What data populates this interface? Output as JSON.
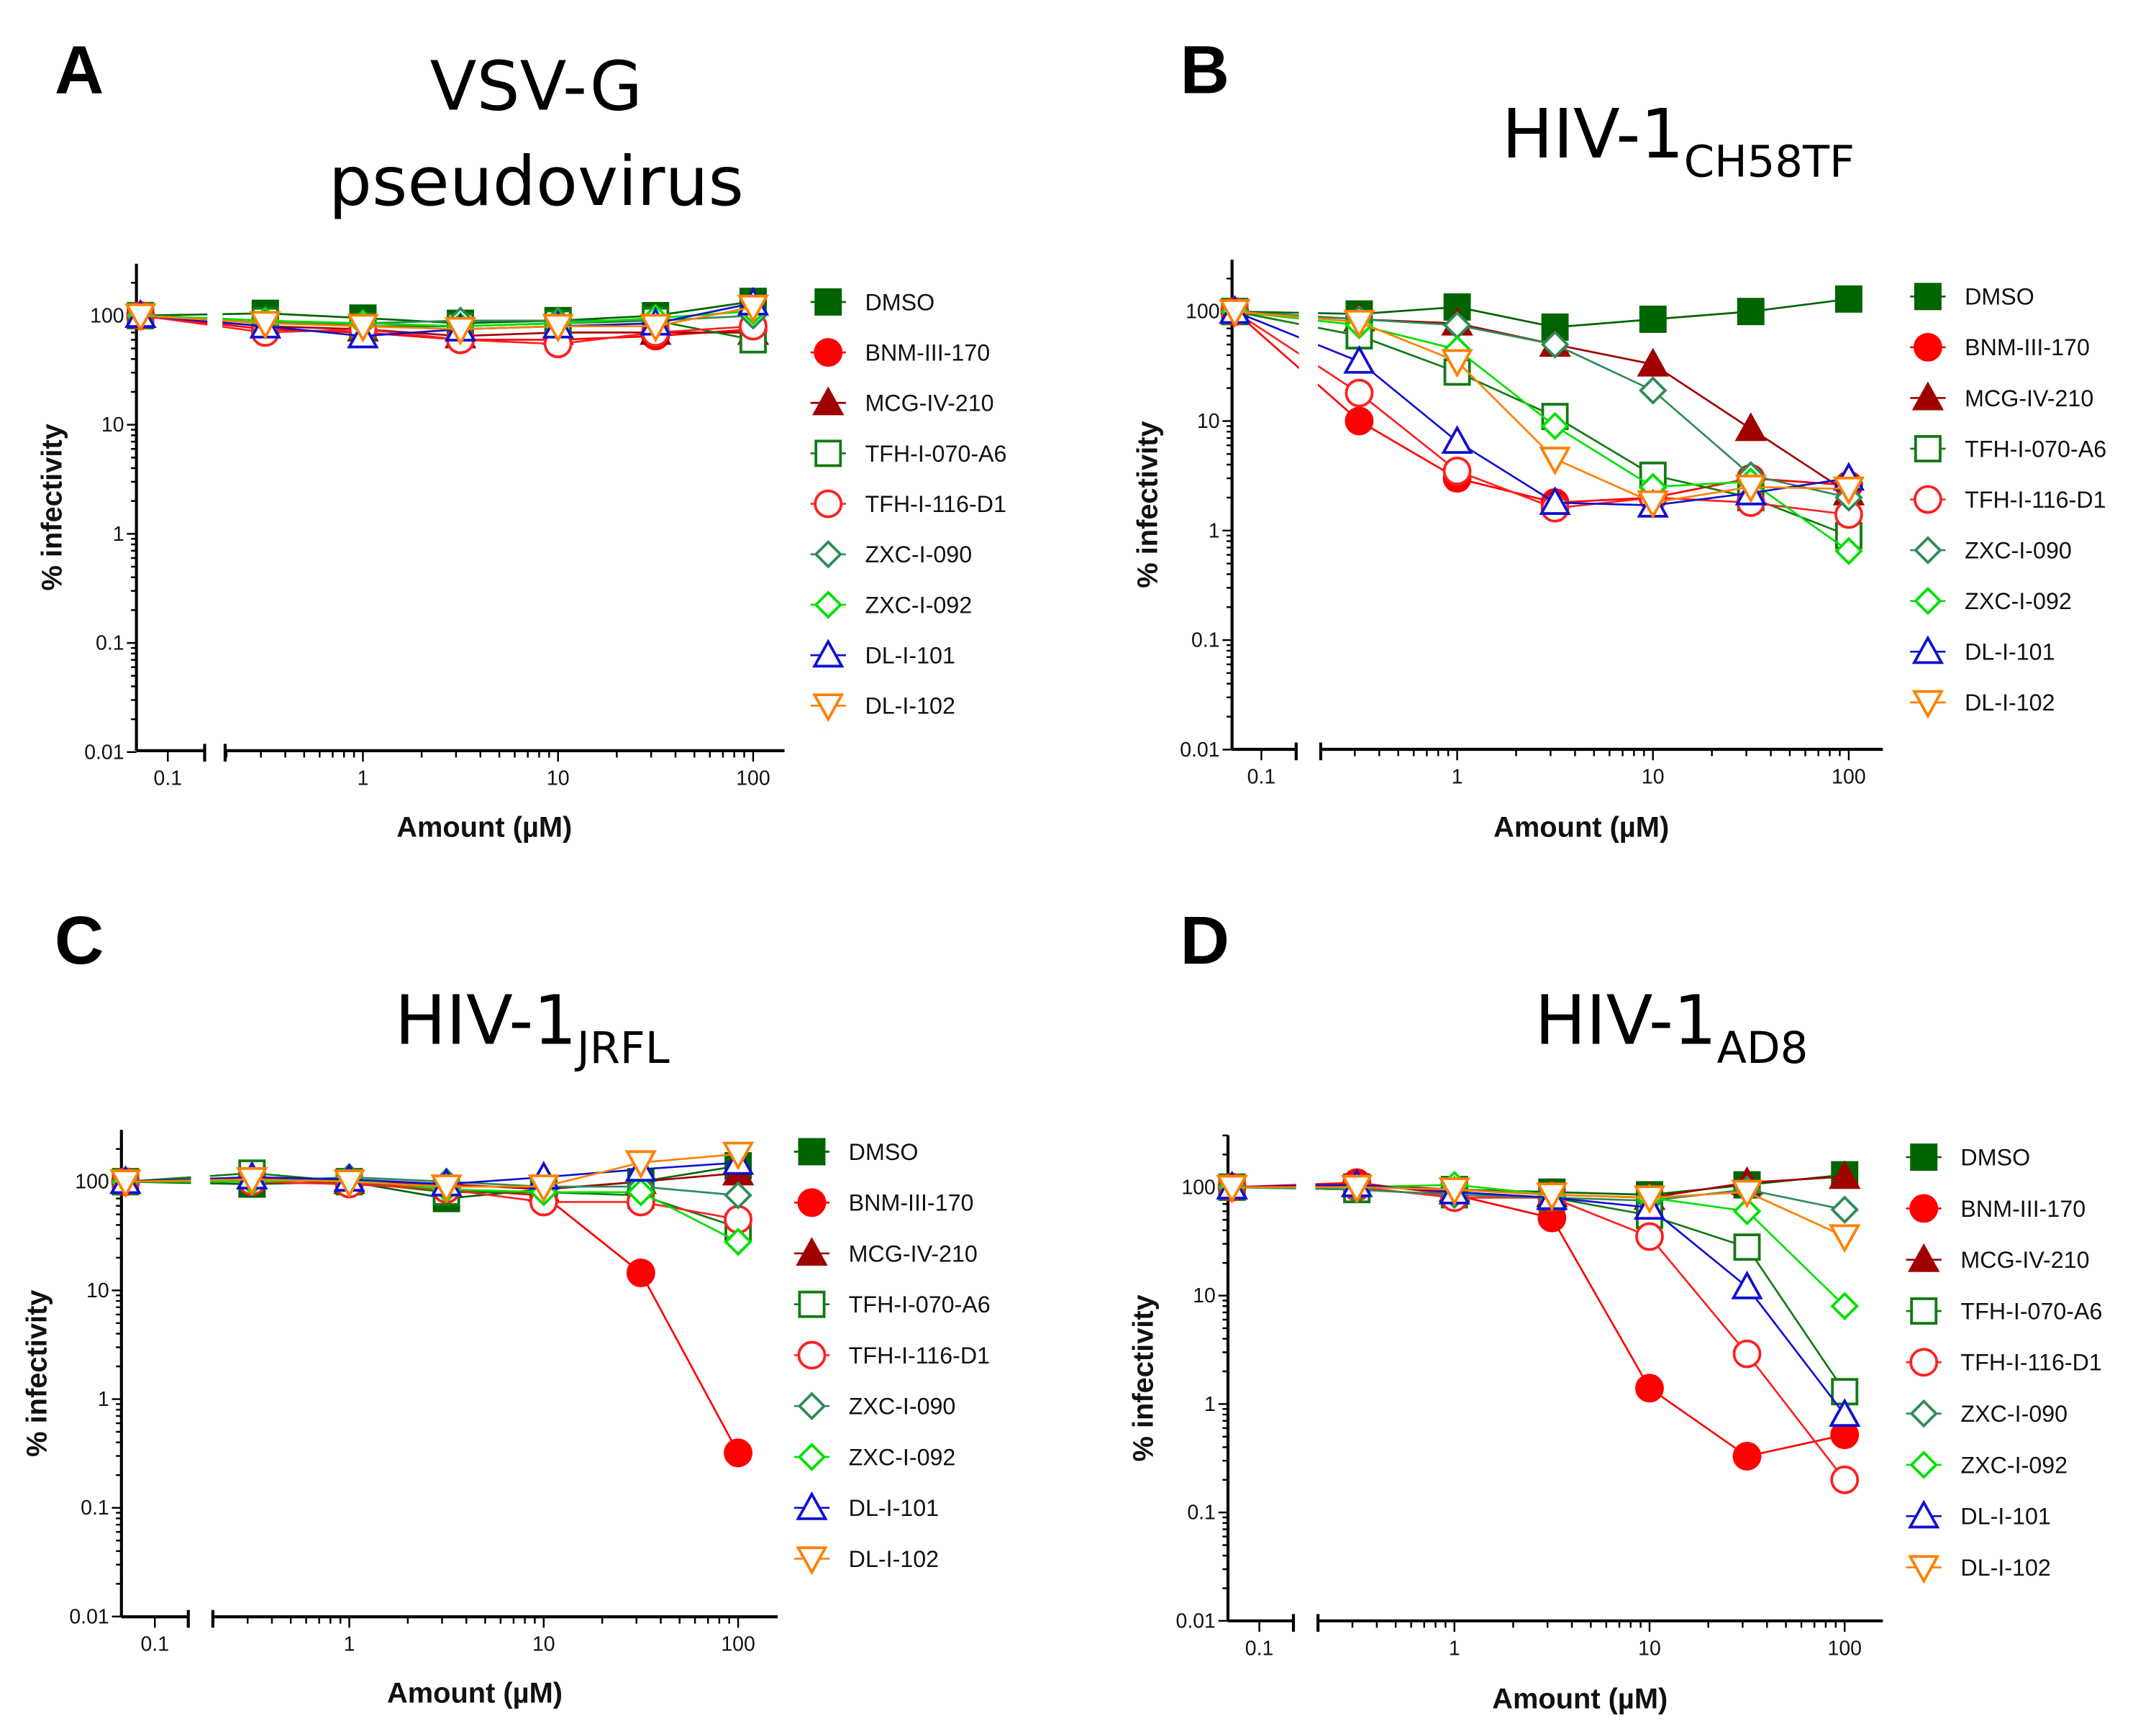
{
  "series_styles": [
    {
      "name": "DMSO",
      "color": "#006400",
      "marker": "square",
      "filled": true
    },
    {
      "name": "BNM-III-170",
      "color": "#ff0000",
      "marker": "circle",
      "filled": true
    },
    {
      "name": "MCG-IV-210",
      "color": "#a00000",
      "marker": "triangle",
      "filled": true
    },
    {
      "name": "TFH-I-070-A6",
      "color": "#117a11",
      "marker": "square",
      "filled": false
    },
    {
      "name": "TFH-I-116-D1",
      "color": "#ff2020",
      "marker": "circle",
      "filled": false
    },
    {
      "name": "ZXC-I-090",
      "color": "#2e8b57",
      "marker": "diamond",
      "filled": false
    },
    {
      "name": "ZXC-I-092",
      "color": "#00e000",
      "marker": "diamond",
      "filled": false
    },
    {
      "name": "DL-I-101",
      "color": "#1010d0",
      "marker": "triangle",
      "filled": false
    },
    {
      "name": "DL-I-102",
      "color": "#ff8000",
      "marker": "triangle-down",
      "filled": false
    }
  ],
  "chart_data": [
    {
      "panel_label": "A",
      "title": "VSV-G",
      "title_line2": "pseudovirus",
      "title_sub": "",
      "type": "line",
      "xlabel": "Amount (µM)",
      "ylabel": "% infectivity",
      "x_scale": "log",
      "y_scale": "log",
      "xlim": [
        0.07,
        150
      ],
      "ylim": [
        0.01,
        300
      ],
      "x_ticks": [
        "0.1",
        "1",
        "10",
        "100"
      ],
      "y_ticks": [
        "100",
        "10",
        "1",
        "0.1",
        "0.01"
      ],
      "legend": "right",
      "grid": false,
      "x": [
        0,
        0.316,
        1,
        3.16,
        10,
        31.6,
        100
      ],
      "series": [
        {
          "name": "DMSO",
          "values": [
            100,
            105,
            95,
            85,
            90,
            100,
            135
          ]
        },
        {
          "name": "BNM-III-170",
          "values": [
            100,
            75,
            70,
            60,
            60,
            65,
            75
          ]
        },
        {
          "name": "MCG-IV-210",
          "values": [
            100,
            80,
            75,
            65,
            70,
            70,
            70
          ]
        },
        {
          "name": "TFH-I-070-A6",
          "values": [
            100,
            90,
            80,
            80,
            85,
            90,
            60
          ]
        },
        {
          "name": "TFH-I-116-D1",
          "values": [
            100,
            70,
            75,
            60,
            55,
            70,
            80
          ]
        },
        {
          "name": "ZXC-I-090",
          "values": [
            100,
            85,
            85,
            90,
            90,
            90,
            100
          ]
        },
        {
          "name": "ZXC-I-092",
          "values": [
            100,
            90,
            85,
            80,
            85,
            95,
            110
          ]
        },
        {
          "name": "DL-I-101",
          "values": [
            100,
            80,
            65,
            75,
            80,
            85,
            130
          ]
        },
        {
          "name": "DL-I-102",
          "values": [
            100,
            85,
            80,
            75,
            80,
            80,
            120
          ]
        }
      ]
    },
    {
      "panel_label": "B",
      "title": "HIV-1",
      "title_line2": "",
      "title_sub": "CH58TF",
      "type": "line",
      "xlabel": "Amount (µM)",
      "ylabel": "% infectivity",
      "x_scale": "log",
      "y_scale": "log",
      "xlim": [
        0.07,
        150
      ],
      "ylim": [
        0.01,
        300
      ],
      "x_ticks": [
        "0.1",
        "1",
        "10",
        "100"
      ],
      "y_ticks": [
        "100",
        "10",
        "1",
        "0.1",
        "0.01"
      ],
      "legend": "right",
      "grid": false,
      "x": [
        0,
        0.316,
        1,
        3.16,
        10,
        31.6,
        100
      ],
      "series": [
        {
          "name": "DMSO",
          "values": [
            100,
            95,
            110,
            72,
            85,
            100,
            130
          ]
        },
        {
          "name": "BNM-III-170",
          "values": [
            100,
            10,
            3,
            1.8,
            2,
            3,
            2.6
          ]
        },
        {
          "name": "MCG-IV-210",
          "values": [
            100,
            85,
            78,
            50,
            33,
            8.5,
            2.2
          ]
        },
        {
          "name": "TFH-I-070-A6",
          "values": [
            100,
            60,
            28,
            11,
            3.2,
            2,
            0.9
          ]
        },
        {
          "name": "TFH-I-116-D1",
          "values": [
            100,
            18,
            3.5,
            1.6,
            2,
            1.8,
            1.4
          ]
        },
        {
          "name": "ZXC-I-090",
          "values": [
            100,
            85,
            75,
            50,
            19,
            3.2,
            2
          ]
        },
        {
          "name": "ZXC-I-092",
          "values": [
            100,
            75,
            45,
            9,
            2.5,
            2.8,
            0.65
          ]
        },
        {
          "name": "DL-I-101",
          "values": [
            100,
            35,
            6.5,
            1.8,
            1.7,
            2.2,
            3
          ]
        },
        {
          "name": "DL-I-102",
          "values": [
            100,
            80,
            35,
            4.5,
            1.8,
            2.5,
            2.4
          ]
        }
      ]
    },
    {
      "panel_label": "C",
      "title": "HIV-1",
      "title_line2": "",
      "title_sub": "JRFL",
      "type": "line",
      "xlabel": "Amount (µM)",
      "ylabel": "% infectivity",
      "x_scale": "log",
      "y_scale": "log",
      "xlim": [
        0.07,
        150
      ],
      "ylim": [
        0.01,
        300
      ],
      "x_ticks": [
        "0.1",
        "1",
        "10",
        "100"
      ],
      "y_ticks": [
        "100",
        "10",
        "1",
        "0.1",
        "0.01"
      ],
      "legend": "right",
      "grid": false,
      "x": [
        0,
        0.316,
        1,
        3.16,
        10,
        31.6,
        100
      ],
      "series": [
        {
          "name": "DMSO",
          "values": [
            100,
            95,
            100,
            70,
            85,
            100,
            140
          ]
        },
        {
          "name": "BNM-III-170",
          "values": [
            100,
            105,
            100,
            85,
            75,
            14.5,
            0.32
          ]
        },
        {
          "name": "MCG-IV-210",
          "values": [
            100,
            110,
            100,
            95,
            85,
            100,
            120
          ]
        },
        {
          "name": "TFH-I-070-A6",
          "values": [
            100,
            120,
            100,
            80,
            80,
            75,
            38
          ]
        },
        {
          "name": "TFH-I-116-D1",
          "values": [
            100,
            100,
            95,
            85,
            65,
            65,
            45
          ]
        },
        {
          "name": "ZXC-I-090",
          "values": [
            100,
            100,
            110,
            100,
            90,
            90,
            75
          ]
        },
        {
          "name": "ZXC-I-092",
          "values": [
            100,
            100,
            105,
            85,
            80,
            80,
            28
          ]
        },
        {
          "name": "DL-I-101",
          "values": [
            100,
            110,
            105,
            95,
            110,
            130,
            150
          ]
        },
        {
          "name": "DL-I-102",
          "values": [
            100,
            105,
            100,
            90,
            90,
            150,
            180
          ]
        }
      ]
    },
    {
      "panel_label": "D",
      "title": "HIV-1",
      "title_line2": "",
      "title_sub": "AD8",
      "type": "line",
      "xlabel": "Amount (µM)",
      "ylabel": "% infectivity",
      "x_scale": "log",
      "y_scale": "log",
      "xlim": [
        0.07,
        150
      ],
      "ylim": [
        0.01,
        300
      ],
      "x_ticks": [
        "0.1",
        "1",
        "10",
        "100"
      ],
      "y_ticks": [
        "100",
        "10",
        "1",
        "0.1",
        "0.01"
      ],
      "legend": "right",
      "grid": false,
      "x": [
        0,
        0.316,
        1,
        3.16,
        10,
        31.6,
        100
      ],
      "series": [
        {
          "name": "DMSO",
          "values": [
            100,
            100,
            95,
            90,
            85,
            105,
            130
          ]
        },
        {
          "name": "BNM-III-170",
          "values": [
            100,
            110,
            85,
            52,
            1.4,
            0.33,
            0.52
          ]
        },
        {
          "name": "MCG-IV-210",
          "values": [
            100,
            105,
            95,
            85,
            80,
            110,
            125
          ]
        },
        {
          "name": "TFH-I-070-A6",
          "values": [
            100,
            95,
            85,
            80,
            55,
            28,
            1.3
          ]
        },
        {
          "name": "TFH-I-116-D1",
          "values": [
            100,
            100,
            80,
            80,
            35,
            2.9,
            0.2
          ]
        },
        {
          "name": "ZXC-I-090",
          "values": [
            100,
            95,
            85,
            80,
            75,
            95,
            62
          ]
        },
        {
          "name": "ZXC-I-092",
          "values": [
            100,
            100,
            105,
            85,
            80,
            60,
            8
          ]
        },
        {
          "name": "DL-I-101",
          "values": [
            100,
            105,
            90,
            80,
            65,
            12,
            0.8
          ]
        },
        {
          "name": "DL-I-102",
          "values": [
            100,
            100,
            95,
            85,
            80,
            90,
            35
          ]
        }
      ]
    }
  ]
}
